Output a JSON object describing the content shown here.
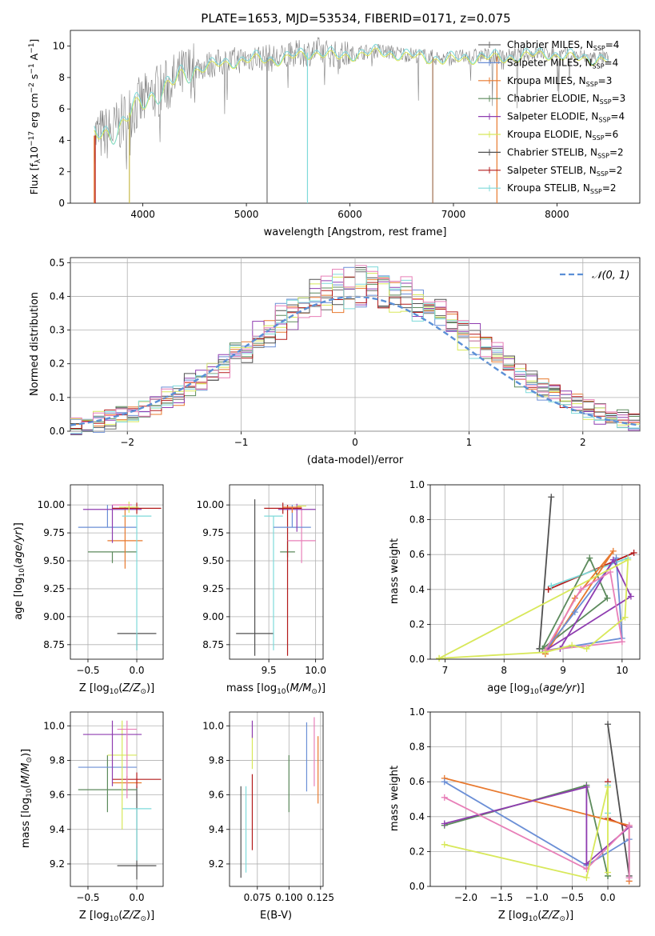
{
  "figure": {
    "title": "PLATE=1653, MJD=53534, FIBERID=0171, z=0.075"
  },
  "colors": {
    "Chabrier MILES": "#6e6e6e",
    "Salpeter MILES": "#6b8fd6",
    "Kroupa MILES": "#e8792e",
    "Chabrier ELODIE": "#5c8a5c",
    "Salpeter ELODIE": "#8f3db0",
    "Kroupa ELODIE": "#d8e85a",
    "Chabrier STELIB": "#505050",
    "Salpeter STELIB": "#b31b1b",
    "Kroupa STELIB": "#7edada",
    "pink": "#e87fb8",
    "normal": "#5b8fd6"
  },
  "chart_data": [
    {
      "id": "spectrum",
      "type": "line",
      "title": "PLATE=1653, MJD=53534, FIBERID=0171, z=0.075",
      "xlabel": "wavelength [Angstrom, rest frame]",
      "ylabel": "Flux [f_λ 10^-17 erg cm^-2 s^-1 A^-1]",
      "xlim": [
        3300,
        8800
      ],
      "ylim": [
        0,
        11
      ],
      "xticks": [
        "4000",
        "5000",
        "6000",
        "7000",
        "8000"
      ],
      "yticks": [
        "0",
        "2",
        "4",
        "6",
        "8",
        "10"
      ],
      "legend_position": "right",
      "legend": [
        {
          "label": "Chabrier MILES, N_SSP=4",
          "color": "#6e6e6e"
        },
        {
          "label": "Salpeter MILES, N_SSP=4",
          "color": "#6b8fd6"
        },
        {
          "label": "Kroupa MILES, N_SSP=3",
          "color": "#e8792e"
        },
        {
          "label": "Chabrier ELODIE, N_SSP=3",
          "color": "#5c8a5c"
        },
        {
          "label": "Salpeter ELODIE, N_SSP=4",
          "color": "#8f3db0"
        },
        {
          "label": "Kroupa ELODIE, N_SSP=6",
          "color": "#d8e85a"
        },
        {
          "label": "Chabrier STELIB, N_SSP=2",
          "color": "#505050"
        },
        {
          "label": "Salpeter STELIB, N_SSP=2",
          "color": "#b31b1b"
        },
        {
          "label": "Kroupa STELIB, N_SSP=2",
          "color": "#7edada"
        }
      ],
      "continuum": {
        "x": [
          3530,
          3700,
          3800,
          3900,
          4000,
          4100,
          4200,
          4300,
          4400,
          4500,
          4700,
          4900,
          5100,
          5300,
          5500,
          5700,
          5900,
          6100,
          6300,
          6500,
          6700,
          6900,
          7100,
          7300,
          7500,
          7700,
          7900,
          8100,
          8300,
          8500
        ],
        "y": [
          4.3,
          4.5,
          5.2,
          6.0,
          6.4,
          7.0,
          7.3,
          7.8,
          8.2,
          8.6,
          8.9,
          9.1,
          9.3,
          9.2,
          9.5,
          9.7,
          9.4,
          9.6,
          9.7,
          9.5,
          9.4,
          9.2,
          9.3,
          9.4,
          9.3,
          9.5,
          9.6,
          9.4,
          9.3,
          9.2
        ]
      }
    },
    {
      "id": "residuals",
      "type": "histogram",
      "xlabel": "(data-model)/error",
      "ylabel": "Normed distribution",
      "xlim": [
        -2.5,
        2.5
      ],
      "ylim": [
        0,
        0.515
      ],
      "xticks": [
        "−2",
        "−1",
        "0",
        "1",
        "2"
      ],
      "yticks": [
        "0.0",
        "0.1",
        "0.2",
        "0.3",
        "0.4",
        "0.5"
      ],
      "legend": [
        {
          "label": "𝒩(0, 1)",
          "style": "dashed"
        }
      ],
      "legend_position": "top-right",
      "bin_width": 0.1
    },
    {
      "id": "age-vs-Z",
      "type": "errorbar",
      "xlabel": "Z [log10(Z/Z☉)]",
      "ylabel": "age  [log10(age/yr)]",
      "xlim": [
        -0.68,
        0.27
      ],
      "ylim": [
        8.62,
        10.18
      ],
      "xticks": [
        {
          "v": -0.5,
          "t": "−0.5"
        },
        {
          "v": 0.0,
          "t": "0.0"
        }
      ],
      "yticks": [
        {
          "v": 8.75,
          "t": "8.75"
        },
        {
          "v": 9.0,
          "t": "9.00"
        },
        {
          "v": 9.25,
          "t": "9.25"
        },
        {
          "v": 9.5,
          "t": "9.50"
        },
        {
          "v": 9.75,
          "t": "9.75"
        },
        {
          "v": 10.0,
          "t": "10.00"
        }
      ],
      "points": [
        {
          "x": 0.0,
          "y": 8.85,
          "xerr": 0.2,
          "yerr": [
            0.15,
            0.0
          ],
          "c": "#505050"
        },
        {
          "x": -0.25,
          "y": 9.58,
          "xerr": 0.25,
          "yerr": [
            0.1,
            0.0
          ],
          "c": "#5c8a5c"
        },
        {
          "x": -0.12,
          "y": 9.68,
          "xerr": 0.18,
          "yerr": [
            0.25,
            0.3
          ],
          "c": "#e8792e"
        },
        {
          "x": -0.3,
          "y": 9.8,
          "xerr": 0.3,
          "yerr": [
            0.0,
            0.2
          ],
          "c": "#6b8fd6"
        },
        {
          "x": -0.25,
          "y": 9.96,
          "xerr": 0.3,
          "yerr": [
            0.3,
            0.04
          ],
          "c": "#8f3db0"
        },
        {
          "x": 0.0,
          "y": 9.97,
          "xerr": 0.25,
          "yerr": [
            0.05,
            0.05
          ],
          "c": "#b31b1b"
        },
        {
          "x": 0.0,
          "y": 9.9,
          "xerr": 0.15,
          "yerr": [
            1.2,
            0.0
          ],
          "c": "#7edada"
        },
        {
          "x": -0.08,
          "y": 9.98,
          "xerr": 0.1,
          "yerr": [
            0.05,
            0.05
          ],
          "c": "#d8e85a"
        },
        {
          "x": -0.15,
          "y": 10.0,
          "xerr": 0.1,
          "yerr": [
            0.0,
            0.0
          ],
          "c": "#e87fb8"
        }
      ]
    },
    {
      "id": "age-vs-mass",
      "type": "errorbar",
      "xlabel": "mass [log10(M/M☉)]",
      "xlim": [
        9.08,
        10.08
      ],
      "ylim": [
        8.62,
        10.18
      ],
      "xticks": [
        {
          "v": 9.5,
          "t": "9.5"
        },
        {
          "v": 10.0,
          "t": "10.0"
        }
      ],
      "yticks": [
        {
          "v": 8.75,
          "t": "8.75"
        },
        {
          "v": 9.0,
          "t": "9.00"
        },
        {
          "v": 9.25,
          "t": "9.25"
        },
        {
          "v": 9.5,
          "t": "9.50"
        },
        {
          "v": 9.75,
          "t": "9.75"
        },
        {
          "v": 10.0,
          "t": "10.00"
        }
      ],
      "points": [
        {
          "x": 9.35,
          "y": 8.85,
          "xerr": 0.2,
          "yerr": [
            0.2,
            1.2
          ],
          "c": "#505050"
        },
        {
          "x": 9.7,
          "y": 9.58,
          "xerr": 0.08,
          "yerr": [
            0.05,
            0.1
          ],
          "c": "#5c8a5c"
        },
        {
          "x": 9.7,
          "y": 9.0,
          "xerr": 0.0,
          "yerr": [
            0.35,
            1.0
          ],
          "c": "#b31b1b"
        },
        {
          "x": 9.55,
          "y": 9.9,
          "xerr": 0.1,
          "yerr": [
            1.2,
            0.0
          ],
          "c": "#7edada"
        },
        {
          "x": 9.85,
          "y": 9.68,
          "xerr": 0.15,
          "yerr": [
            0.2,
            0.3
          ],
          "c": "#e87fb8"
        },
        {
          "x": 9.75,
          "y": 9.8,
          "xerr": 0.2,
          "yerr": [
            0.0,
            0.2
          ],
          "c": "#6b8fd6"
        },
        {
          "x": 9.8,
          "y": 9.96,
          "xerr": 0.2,
          "yerr": [
            0.2,
            0.05
          ],
          "c": "#8f3db0"
        },
        {
          "x": 9.65,
          "y": 9.97,
          "xerr": 0.2,
          "yerr": [
            0.05,
            0.05
          ],
          "c": "#b31b1b"
        },
        {
          "x": 9.75,
          "y": 9.98,
          "xerr": 0.1,
          "yerr": [
            0.05,
            0.0
          ],
          "c": "#e8792e"
        },
        {
          "x": 9.85,
          "y": 9.99,
          "xerr": 0.05,
          "yerr": [
            0.0,
            0.0
          ],
          "c": "#d8e85a"
        }
      ]
    },
    {
      "id": "weight-vs-age",
      "type": "line",
      "xlabel": "age  [log10(age/yr)]",
      "ylabel": "mass weight",
      "xlim": [
        6.75,
        10.3
      ],
      "ylim": [
        0,
        1.0
      ],
      "xticks": [
        {
          "v": 7,
          "t": "7"
        },
        {
          "v": 8,
          "t": "8"
        },
        {
          "v": 9,
          "t": "9"
        },
        {
          "v": 10,
          "t": "10"
        }
      ],
      "yticks": [
        {
          "v": 0,
          "t": "0.0"
        },
        {
          "v": 0.2,
          "t": "0.2"
        },
        {
          "v": 0.4,
          "t": "0.4"
        },
        {
          "v": 0.6,
          "t": "0.6"
        },
        {
          "v": 0.8,
          "t": "0.8"
        },
        {
          "v": 1.0,
          "t": "1.0"
        }
      ],
      "series": [
        {
          "c": "#505050",
          "x": [
            8.6,
            8.8,
            8.6
          ],
          "y": [
            0.06,
            0.93,
            0.06
          ]
        },
        {
          "c": "#b31b1b",
          "x": [
            8.75,
            10.2,
            8.75
          ],
          "y": [
            0.4,
            0.61,
            0.4
          ]
        },
        {
          "c": "#7edada",
          "x": [
            8.8,
            10.1,
            8.8
          ],
          "y": [
            0.42,
            0.58,
            0.42
          ]
        },
        {
          "c": "#5c8a5c",
          "x": [
            8.65,
            9.45,
            9.75,
            8.65
          ],
          "y": [
            0.06,
            0.58,
            0.35,
            0.06
          ]
        },
        {
          "c": "#e8792e",
          "x": [
            8.7,
            9.85,
            9.2,
            8.7
          ],
          "y": [
            0.03,
            0.62,
            0.35,
            0.03
          ]
        },
        {
          "c": "#6b8fd6",
          "x": [
            8.7,
            9.2,
            9.9,
            10.0,
            8.7
          ],
          "y": [
            0.05,
            0.27,
            0.58,
            0.12,
            0.05
          ]
        },
        {
          "c": "#8f3db0",
          "x": [
            8.7,
            8.95,
            9.85,
            10.15,
            8.7
          ],
          "y": [
            0.05,
            0.06,
            0.57,
            0.36,
            0.05
          ]
        },
        {
          "c": "#e87fb8",
          "x": [
            8.7,
            9.3,
            9.8,
            10.0,
            8.7
          ],
          "y": [
            0.05,
            0.4,
            0.5,
            0.1,
            0.05
          ]
        },
        {
          "c": "#d8e85a",
          "x": [
            6.9,
            8.7,
            9.15,
            9.4,
            10.05,
            10.1,
            6.9
          ],
          "y": [
            0.005,
            0.04,
            0.08,
            0.06,
            0.24,
            0.57,
            0.005
          ]
        }
      ]
    },
    {
      "id": "mass-vs-Z",
      "type": "errorbar",
      "xlabel": "Z [log10(Z/Z☉)]",
      "ylabel": "mass [log10(M/M☉)]",
      "xlim": [
        -0.68,
        0.27
      ],
      "ylim": [
        9.07,
        10.08
      ],
      "xticks": [
        {
          "v": -0.5,
          "t": "−0.5"
        },
        {
          "v": 0.0,
          "t": "0.0"
        }
      ],
      "yticks": [
        {
          "v": 9.2,
          "t": "9.2"
        },
        {
          "v": 9.4,
          "t": "9.4"
        },
        {
          "v": 9.6,
          "t": "9.6"
        },
        {
          "v": 9.8,
          "t": "9.8"
        },
        {
          "v": 10.0,
          "t": "10.0"
        }
      ],
      "points": [
        {
          "x": 0.0,
          "y": 9.19,
          "xerr": 0.2,
          "yerr": [
            0.08,
            0.46
          ],
          "c": "#505050"
        },
        {
          "x": 0.0,
          "y": 9.52,
          "xerr": 0.15,
          "yerr": [
            0.3,
            0.0
          ],
          "c": "#7edada"
        },
        {
          "x": -0.3,
          "y": 9.63,
          "xerr": 0.3,
          "yerr": [
            0.13,
            0.2
          ],
          "c": "#5c8a5c"
        },
        {
          "x": -0.1,
          "y": 9.67,
          "xerr": 0.15,
          "yerr": [
            0.05,
            0.04
          ],
          "c": "#e8792e"
        },
        {
          "x": 0.0,
          "y": 9.69,
          "xerr": 0.25,
          "yerr": [
            0.05,
            0.04
          ],
          "c": "#b31b1b"
        },
        {
          "x": -0.3,
          "y": 9.76,
          "xerr": 0.3,
          "yerr": [
            0.0,
            0.0
          ],
          "c": "#6b8fd6"
        },
        {
          "x": -0.15,
          "y": 9.83,
          "xerr": 0.15,
          "yerr": [
            0.43,
            0.2
          ],
          "c": "#d8e85a"
        },
        {
          "x": -0.25,
          "y": 9.95,
          "xerr": 0.3,
          "yerr": [
            0.3,
            0.08
          ],
          "c": "#8f3db0"
        },
        {
          "x": -0.1,
          "y": 9.98,
          "xerr": 0.1,
          "yerr": [
            0.4,
            0.05
          ],
          "c": "#e87fb8"
        }
      ]
    },
    {
      "id": "mass-vs-ebv",
      "type": "errorbar",
      "xlabel": "E(B-V)",
      "xlim": [
        0.053,
        0.127
      ],
      "ylim": [
        9.07,
        10.08
      ],
      "xticks": [
        {
          "v": 0.075,
          "t": "0.075"
        },
        {
          "v": 0.1,
          "t": "0.100"
        },
        {
          "v": 0.125,
          "t": "0.125"
        }
      ],
      "yticks": [
        {
          "v": 9.2,
          "t": "9.2"
        },
        {
          "v": 9.4,
          "t": "9.4"
        },
        {
          "v": 9.6,
          "t": "9.6"
        },
        {
          "v": 9.8,
          "t": "9.8"
        },
        {
          "v": 10.0,
          "t": "10.0"
        }
      ],
      "points": [
        {
          "x": 0.062,
          "y": 9.4,
          "xerr": 0.0,
          "yerr": [
            0.28,
            0.25
          ],
          "c": "#505050"
        },
        {
          "x": 0.066,
          "y": 9.4,
          "xerr": 0.0,
          "yerr": [
            0.25,
            0.25
          ],
          "c": "#7edada"
        },
        {
          "x": 0.071,
          "y": 9.5,
          "xerr": 0.0,
          "yerr": [
            0.22,
            0.22
          ],
          "c": "#b31b1b"
        },
        {
          "x": 0.071,
          "y": 9.85,
          "xerr": 0.0,
          "yerr": [
            0.1,
            0.1
          ],
          "c": "#d8e85a"
        },
        {
          "x": 0.071,
          "y": 9.98,
          "xerr": 0.0,
          "yerr": [
            0.05,
            0.05
          ],
          "c": "#8f3db0"
        },
        {
          "x": 0.1,
          "y": 9.66,
          "xerr": 0.0,
          "yerr": [
            0.16,
            0.17
          ],
          "c": "#5c8a5c"
        },
        {
          "x": 0.114,
          "y": 9.82,
          "xerr": 0.0,
          "yerr": [
            0.2,
            0.2
          ],
          "c": "#6b8fd6"
        },
        {
          "x": 0.12,
          "y": 9.85,
          "xerr": 0.0,
          "yerr": [
            0.2,
            0.2
          ],
          "c": "#e87fb8"
        },
        {
          "x": 0.123,
          "y": 9.74,
          "xerr": 0.0,
          "yerr": [
            0.19,
            0.2
          ],
          "c": "#e8792e"
        }
      ]
    },
    {
      "id": "weight-vs-Z",
      "type": "line",
      "xlabel": "Z [log10(Z/Z☉)]",
      "ylabel": "mass weight",
      "xlim": [
        -2.5,
        0.45
      ],
      "ylim": [
        0,
        1.0
      ],
      "xticks": [
        {
          "v": -2.0,
          "t": "−2.0"
        },
        {
          "v": -1.5,
          "t": "−1.5"
        },
        {
          "v": -1.0,
          "t": "−1.0"
        },
        {
          "v": -0.5,
          "t": "−0.5"
        },
        {
          "v": 0.0,
          "t": "0.0"
        }
      ],
      "yticks": [
        {
          "v": 0,
          "t": "0.0"
        },
        {
          "v": 0.2,
          "t": "0.2"
        },
        {
          "v": 0.4,
          "t": "0.4"
        },
        {
          "v": 0.6,
          "t": "0.6"
        },
        {
          "v": 0.8,
          "t": "0.8"
        },
        {
          "v": 1.0,
          "t": "1.0"
        }
      ],
      "series": [
        {
          "c": "#505050",
          "x": [
            0.0,
            0.3
          ],
          "y": [
            0.93,
            0.06
          ]
        },
        {
          "c": "#b31b1b",
          "x": [
            0.0,
            0.0,
            0.3
          ],
          "y": [
            0.6,
            0.39,
            0.34
          ]
        },
        {
          "c": "#7edada",
          "x": [
            0.0,
            0.0
          ],
          "y": [
            0.58,
            0.42
          ]
        },
        {
          "c": "#5c8a5c",
          "x": [
            -2.3,
            -0.3,
            0.0,
            0.0
          ],
          "y": [
            0.35,
            0.58,
            0.06,
            0.06
          ]
        },
        {
          "c": "#e8792e",
          "x": [
            -2.3,
            0.3,
            0.3
          ],
          "y": [
            0.62,
            0.35,
            0.03
          ]
        },
        {
          "c": "#6b8fd6",
          "x": [
            -2.3,
            -0.3,
            0.3,
            0.3
          ],
          "y": [
            0.6,
            0.12,
            0.27,
            0.05
          ]
        },
        {
          "c": "#8f3db0",
          "x": [
            -2.3,
            -0.3,
            -0.3,
            0.3
          ],
          "y": [
            0.36,
            0.57,
            0.13,
            0.34
          ]
        },
        {
          "c": "#e87fb8",
          "x": [
            -2.3,
            -0.3,
            0.3,
            0.3
          ],
          "y": [
            0.51,
            0.1,
            0.35,
            0.05
          ]
        },
        {
          "c": "#d8e85a",
          "x": [
            -2.3,
            -0.3,
            0.0,
            0.0
          ],
          "y": [
            0.24,
            0.05,
            0.57,
            0.08
          ]
        }
      ]
    }
  ]
}
